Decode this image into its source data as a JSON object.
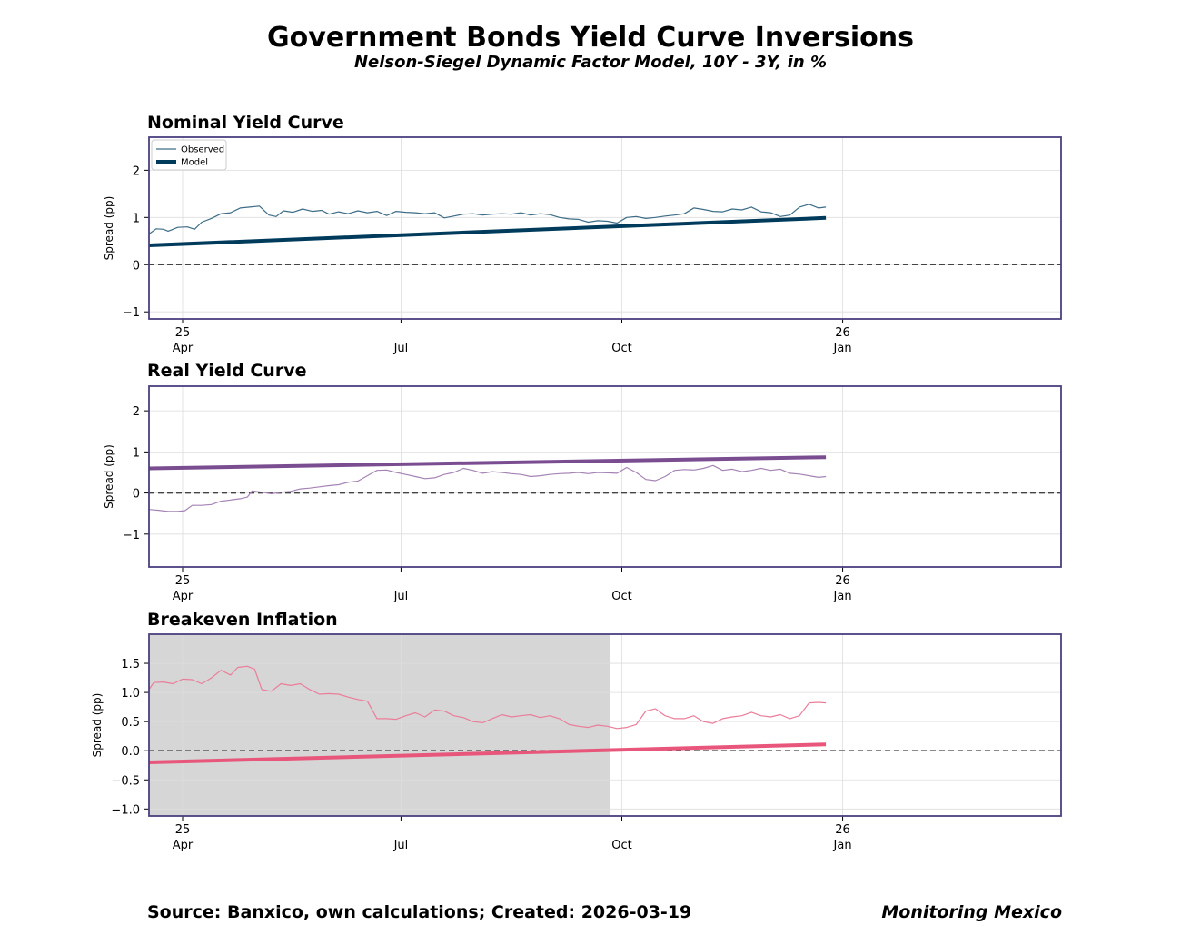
{
  "title": "Government Bonds Yield Curve Inversions",
  "subtitle": "Nelson-Siegel Dynamic Factor Model, 10Y - 3Y, in %",
  "footer": {
    "source": "Source: Banxico, own calculations; Created: 2026-03-19",
    "brand": "Monitoring Mexico"
  },
  "colors": {
    "frame": "#4b3f7f",
    "zero_line": "#444444",
    "grid": "#dddddd",
    "recession_shade": "#d6d6d6"
  },
  "chart_data": [
    {
      "type": "line",
      "id": "nominal",
      "title": "Nominal Yield Curve",
      "ylabel": "Spread (pp)",
      "xlabel": "",
      "xlim_days": [
        0,
        380
      ],
      "ylim": [
        -1.15,
        2.7
      ],
      "yticks": [
        -1,
        0,
        1,
        2
      ],
      "ytick_labels": [
        "−1",
        "0",
        "1",
        "2"
      ],
      "xticks": [
        {
          "day": 14,
          "labels": [
            "25",
            "Apr"
          ]
        },
        {
          "day": 105,
          "labels": [
            "",
            "Jul"
          ]
        },
        {
          "day": 197,
          "labels": [
            "",
            "Oct"
          ]
        },
        {
          "day": 289,
          "labels": [
            "26",
            "Jan"
          ]
        }
      ],
      "legend": {
        "position": "top-left",
        "entries": [
          "Observed",
          "Model"
        ]
      },
      "shade": null,
      "observed_color": "#3d6d87",
      "model_color": "#003b5c",
      "model": {
        "x": [
          0,
          282
        ],
        "y": [
          0.41,
          0.99
        ]
      },
      "observed": [
        {
          "x": 0,
          "y": 0.65
        },
        {
          "x": 3,
          "y": 0.76
        },
        {
          "x": 6,
          "y": 0.75
        },
        {
          "x": 8,
          "y": 0.71
        },
        {
          "x": 12,
          "y": 0.79
        },
        {
          "x": 16,
          "y": 0.8
        },
        {
          "x": 19,
          "y": 0.75
        },
        {
          "x": 22,
          "y": 0.9
        },
        {
          "x": 26,
          "y": 0.98
        },
        {
          "x": 30,
          "y": 1.08
        },
        {
          "x": 34,
          "y": 1.1
        },
        {
          "x": 38,
          "y": 1.2
        },
        {
          "x": 42,
          "y": 1.22
        },
        {
          "x": 46,
          "y": 1.24
        },
        {
          "x": 50,
          "y": 1.05
        },
        {
          "x": 53,
          "y": 1.02
        },
        {
          "x": 56,
          "y": 1.14
        },
        {
          "x": 60,
          "y": 1.11
        },
        {
          "x": 64,
          "y": 1.18
        },
        {
          "x": 68,
          "y": 1.13
        },
        {
          "x": 72,
          "y": 1.15
        },
        {
          "x": 75,
          "y": 1.07
        },
        {
          "x": 79,
          "y": 1.12
        },
        {
          "x": 83,
          "y": 1.08
        },
        {
          "x": 87,
          "y": 1.14
        },
        {
          "x": 91,
          "y": 1.1
        },
        {
          "x": 95,
          "y": 1.13
        },
        {
          "x": 99,
          "y": 1.04
        },
        {
          "x": 103,
          "y": 1.13
        },
        {
          "x": 107,
          "y": 1.11
        },
        {
          "x": 111,
          "y": 1.1
        },
        {
          "x": 115,
          "y": 1.08
        },
        {
          "x": 119,
          "y": 1.1
        },
        {
          "x": 123,
          "y": 0.99
        },
        {
          "x": 127,
          "y": 1.03
        },
        {
          "x": 131,
          "y": 1.07
        },
        {
          "x": 135,
          "y": 1.08
        },
        {
          "x": 139,
          "y": 1.05
        },
        {
          "x": 143,
          "y": 1.07
        },
        {
          "x": 147,
          "y": 1.08
        },
        {
          "x": 151,
          "y": 1.07
        },
        {
          "x": 155,
          "y": 1.1
        },
        {
          "x": 159,
          "y": 1.05
        },
        {
          "x": 163,
          "y": 1.08
        },
        {
          "x": 167,
          "y": 1.06
        },
        {
          "x": 171,
          "y": 1.0
        },
        {
          "x": 175,
          "y": 0.97
        },
        {
          "x": 179,
          "y": 0.96
        },
        {
          "x": 183,
          "y": 0.9
        },
        {
          "x": 187,
          "y": 0.93
        },
        {
          "x": 191,
          "y": 0.92
        },
        {
          "x": 195,
          "y": 0.88
        },
        {
          "x": 199,
          "y": 1.0
        },
        {
          "x": 203,
          "y": 1.02
        },
        {
          "x": 207,
          "y": 0.98
        },
        {
          "x": 211,
          "y": 1.0
        },
        {
          "x": 215,
          "y": 1.03
        },
        {
          "x": 219,
          "y": 1.05
        },
        {
          "x": 223,
          "y": 1.08
        },
        {
          "x": 227,
          "y": 1.2
        },
        {
          "x": 231,
          "y": 1.17
        },
        {
          "x": 235,
          "y": 1.13
        },
        {
          "x": 239,
          "y": 1.12
        },
        {
          "x": 243,
          "y": 1.18
        },
        {
          "x": 247,
          "y": 1.16
        },
        {
          "x": 251,
          "y": 1.22
        },
        {
          "x": 255,
          "y": 1.12
        },
        {
          "x": 259,
          "y": 1.1
        },
        {
          "x": 263,
          "y": 1.02
        },
        {
          "x": 267,
          "y": 1.05
        },
        {
          "x": 271,
          "y": 1.22
        },
        {
          "x": 275,
          "y": 1.28
        },
        {
          "x": 279,
          "y": 1.2
        },
        {
          "x": 282,
          "y": 1.22
        }
      ]
    },
    {
      "type": "line",
      "id": "real",
      "title": "Real Yield Curve",
      "ylabel": "Spread (pp)",
      "xlabel": "",
      "xlim_days": [
        0,
        380
      ],
      "ylim": [
        -1.8,
        2.6
      ],
      "yticks": [
        -1,
        0,
        1,
        2
      ],
      "ytick_labels": [
        "−1",
        "0",
        "1",
        "2"
      ],
      "xticks": [
        {
          "day": 14,
          "labels": [
            "25",
            "Apr"
          ]
        },
        {
          "day": 105,
          "labels": [
            "",
            "Jul"
          ]
        },
        {
          "day": 197,
          "labels": [
            "",
            "Oct"
          ]
        },
        {
          "day": 289,
          "labels": [
            "26",
            "Jan"
          ]
        }
      ],
      "legend": null,
      "shade": null,
      "observed_color": "#a584b5",
      "model_color": "#7a4d91",
      "model": {
        "x": [
          0,
          282
        ],
        "y": [
          0.6,
          0.87
        ]
      },
      "observed": [
        {
          "x": 0,
          "y": -0.4
        },
        {
          "x": 4,
          "y": -0.42
        },
        {
          "x": 8,
          "y": -0.45
        },
        {
          "x": 12,
          "y": -0.45
        },
        {
          "x": 15,
          "y": -0.43
        },
        {
          "x": 18,
          "y": -0.3
        },
        {
          "x": 22,
          "y": -0.3
        },
        {
          "x": 26,
          "y": -0.28
        },
        {
          "x": 30,
          "y": -0.2
        },
        {
          "x": 34,
          "y": -0.17
        },
        {
          "x": 38,
          "y": -0.14
        },
        {
          "x": 41,
          "y": -0.1
        },
        {
          "x": 43,
          "y": 0.05
        },
        {
          "x": 47,
          "y": 0.02
        },
        {
          "x": 51,
          "y": -0.02
        },
        {
          "x": 55,
          "y": 0.02
        },
        {
          "x": 59,
          "y": 0.04
        },
        {
          "x": 63,
          "y": 0.1
        },
        {
          "x": 67,
          "y": 0.12
        },
        {
          "x": 71,
          "y": 0.15
        },
        {
          "x": 75,
          "y": 0.18
        },
        {
          "x": 79,
          "y": 0.2
        },
        {
          "x": 83,
          "y": 0.26
        },
        {
          "x": 87,
          "y": 0.29
        },
        {
          "x": 91,
          "y": 0.42
        },
        {
          "x": 95,
          "y": 0.55
        },
        {
          "x": 99,
          "y": 0.56
        },
        {
          "x": 103,
          "y": 0.5
        },
        {
          "x": 107,
          "y": 0.45
        },
        {
          "x": 111,
          "y": 0.4
        },
        {
          "x": 115,
          "y": 0.35
        },
        {
          "x": 119,
          "y": 0.37
        },
        {
          "x": 123,
          "y": 0.45
        },
        {
          "x": 127,
          "y": 0.5
        },
        {
          "x": 131,
          "y": 0.6
        },
        {
          "x": 135,
          "y": 0.55
        },
        {
          "x": 139,
          "y": 0.48
        },
        {
          "x": 143,
          "y": 0.52
        },
        {
          "x": 147,
          "y": 0.5
        },
        {
          "x": 151,
          "y": 0.47
        },
        {
          "x": 155,
          "y": 0.45
        },
        {
          "x": 159,
          "y": 0.4
        },
        {
          "x": 163,
          "y": 0.42
        },
        {
          "x": 167,
          "y": 0.45
        },
        {
          "x": 171,
          "y": 0.47
        },
        {
          "x": 175,
          "y": 0.48
        },
        {
          "x": 179,
          "y": 0.5
        },
        {
          "x": 183,
          "y": 0.47
        },
        {
          "x": 187,
          "y": 0.5
        },
        {
          "x": 191,
          "y": 0.49
        },
        {
          "x": 195,
          "y": 0.48
        },
        {
          "x": 199,
          "y": 0.62
        },
        {
          "x": 203,
          "y": 0.5
        },
        {
          "x": 207,
          "y": 0.33
        },
        {
          "x": 211,
          "y": 0.3
        },
        {
          "x": 215,
          "y": 0.4
        },
        {
          "x": 219,
          "y": 0.55
        },
        {
          "x": 223,
          "y": 0.57
        },
        {
          "x": 227,
          "y": 0.56
        },
        {
          "x": 231,
          "y": 0.6
        },
        {
          "x": 235,
          "y": 0.67
        },
        {
          "x": 239,
          "y": 0.55
        },
        {
          "x": 243,
          "y": 0.58
        },
        {
          "x": 247,
          "y": 0.52
        },
        {
          "x": 251,
          "y": 0.55
        },
        {
          "x": 255,
          "y": 0.6
        },
        {
          "x": 259,
          "y": 0.55
        },
        {
          "x": 263,
          "y": 0.58
        },
        {
          "x": 267,
          "y": 0.48
        },
        {
          "x": 271,
          "y": 0.46
        },
        {
          "x": 275,
          "y": 0.42
        },
        {
          "x": 279,
          "y": 0.38
        },
        {
          "x": 282,
          "y": 0.4
        }
      ]
    },
    {
      "type": "line",
      "id": "breakeven",
      "title": "Breakeven Inflation",
      "ylabel": "Spread (pp)",
      "xlabel": "",
      "xlim_days": [
        0,
        380
      ],
      "ylim": [
        -1.12,
        2.0
      ],
      "yticks": [
        -1.0,
        -0.5,
        0.0,
        0.5,
        1.0,
        1.5
      ],
      "ytick_labels": [
        "−1.0",
        "−0.5",
        "0.0",
        "0.5",
        "1.0",
        "1.5"
      ],
      "xticks": [
        {
          "day": 14,
          "labels": [
            "25",
            "Apr"
          ]
        },
        {
          "day": 105,
          "labels": [
            "",
            "Jul"
          ]
        },
        {
          "day": 197,
          "labels": [
            "",
            "Oct"
          ]
        },
        {
          "day": 289,
          "labels": [
            "26",
            "Jan"
          ]
        }
      ],
      "legend": null,
      "shade": {
        "from_day": 0,
        "to_day": 192
      },
      "observed_color": "#ea7e9a",
      "model_color": "#e8577b",
      "model": {
        "x": [
          0,
          282
        ],
        "y": [
          -0.2,
          0.11
        ]
      },
      "observed": [
        {
          "x": 0,
          "y": 1.05
        },
        {
          "x": 2,
          "y": 1.17
        },
        {
          "x": 6,
          "y": 1.18
        },
        {
          "x": 10,
          "y": 1.15
        },
        {
          "x": 14,
          "y": 1.23
        },
        {
          "x": 18,
          "y": 1.22
        },
        {
          "x": 22,
          "y": 1.15
        },
        {
          "x": 26,
          "y": 1.25
        },
        {
          "x": 30,
          "y": 1.38
        },
        {
          "x": 34,
          "y": 1.3
        },
        {
          "x": 37,
          "y": 1.43
        },
        {
          "x": 41,
          "y": 1.45
        },
        {
          "x": 44,
          "y": 1.4
        },
        {
          "x": 47,
          "y": 1.05
        },
        {
          "x": 51,
          "y": 1.02
        },
        {
          "x": 55,
          "y": 1.15
        },
        {
          "x": 59,
          "y": 1.12
        },
        {
          "x": 63,
          "y": 1.15
        },
        {
          "x": 67,
          "y": 1.05
        },
        {
          "x": 71,
          "y": 0.97
        },
        {
          "x": 75,
          "y": 0.98
        },
        {
          "x": 79,
          "y": 0.97
        },
        {
          "x": 83,
          "y": 0.92
        },
        {
          "x": 87,
          "y": 0.88
        },
        {
          "x": 91,
          "y": 0.85
        },
        {
          "x": 95,
          "y": 0.55
        },
        {
          "x": 99,
          "y": 0.55
        },
        {
          "x": 103,
          "y": 0.54
        },
        {
          "x": 107,
          "y": 0.6
        },
        {
          "x": 111,
          "y": 0.65
        },
        {
          "x": 115,
          "y": 0.58
        },
        {
          "x": 119,
          "y": 0.7
        },
        {
          "x": 123,
          "y": 0.68
        },
        {
          "x": 127,
          "y": 0.6
        },
        {
          "x": 131,
          "y": 0.57
        },
        {
          "x": 135,
          "y": 0.5
        },
        {
          "x": 139,
          "y": 0.48
        },
        {
          "x": 143,
          "y": 0.55
        },
        {
          "x": 147,
          "y": 0.62
        },
        {
          "x": 151,
          "y": 0.58
        },
        {
          "x": 155,
          "y": 0.6
        },
        {
          "x": 159,
          "y": 0.62
        },
        {
          "x": 163,
          "y": 0.57
        },
        {
          "x": 167,
          "y": 0.6
        },
        {
          "x": 171,
          "y": 0.55
        },
        {
          "x": 175,
          "y": 0.45
        },
        {
          "x": 179,
          "y": 0.42
        },
        {
          "x": 183,
          "y": 0.4
        },
        {
          "x": 187,
          "y": 0.44
        },
        {
          "x": 191,
          "y": 0.42
        },
        {
          "x": 195,
          "y": 0.38
        },
        {
          "x": 199,
          "y": 0.4
        },
        {
          "x": 203,
          "y": 0.45
        },
        {
          "x": 207,
          "y": 0.68
        },
        {
          "x": 211,
          "y": 0.72
        },
        {
          "x": 215,
          "y": 0.6
        },
        {
          "x": 219,
          "y": 0.55
        },
        {
          "x": 223,
          "y": 0.55
        },
        {
          "x": 227,
          "y": 0.6
        },
        {
          "x": 231,
          "y": 0.5
        },
        {
          "x": 235,
          "y": 0.47
        },
        {
          "x": 239,
          "y": 0.55
        },
        {
          "x": 243,
          "y": 0.58
        },
        {
          "x": 247,
          "y": 0.6
        },
        {
          "x": 251,
          "y": 0.66
        },
        {
          "x": 255,
          "y": 0.6
        },
        {
          "x": 259,
          "y": 0.58
        },
        {
          "x": 263,
          "y": 0.62
        },
        {
          "x": 267,
          "y": 0.55
        },
        {
          "x": 271,
          "y": 0.6
        },
        {
          "x": 275,
          "y": 0.82
        },
        {
          "x": 279,
          "y": 0.83
        },
        {
          "x": 282,
          "y": 0.82
        }
      ]
    }
  ]
}
